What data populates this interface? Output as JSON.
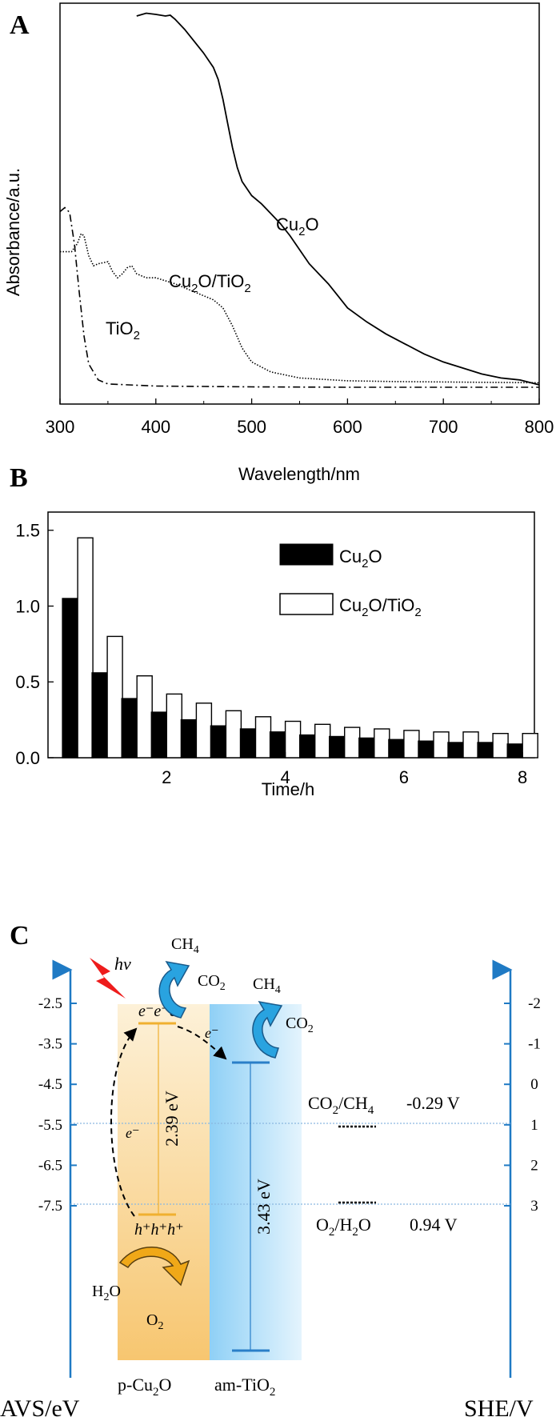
{
  "panels": {
    "a": "A",
    "b": "B",
    "c": "C"
  },
  "chart_data": [
    {
      "type": "line",
      "panel": "A",
      "xlabel": "Wavelength/nm",
      "ylabel": "Absorbance/a.u.",
      "xlim": [
        300,
        800
      ],
      "ylim": [
        0,
        1
      ],
      "xticks": [
        300,
        400,
        500,
        600,
        700,
        800
      ],
      "series": [
        {
          "name": "Cu2O",
          "label_main": "Cu",
          "label_sub": "2",
          "label_rest": "O",
          "style": "solid",
          "points": [
            [
              380,
              0.968
            ],
            [
              390,
              0.975
            ],
            [
              400,
              0.972
            ],
            [
              410,
              0.968
            ],
            [
              415,
              0.97
            ],
            [
              420,
              0.96
            ],
            [
              430,
              0.935
            ],
            [
              440,
              0.905
            ],
            [
              450,
              0.875
            ],
            [
              460,
              0.84
            ],
            [
              465,
              0.81
            ],
            [
              470,
              0.76
            ],
            [
              475,
              0.7
            ],
            [
              480,
              0.64
            ],
            [
              485,
              0.59
            ],
            [
              490,
              0.555
            ],
            [
              500,
              0.52
            ],
            [
              510,
              0.5
            ],
            [
              520,
              0.475
            ],
            [
              530,
              0.45
            ],
            [
              540,
              0.42
            ],
            [
              550,
              0.385
            ],
            [
              560,
              0.35
            ],
            [
              570,
              0.325
            ],
            [
              580,
              0.3
            ],
            [
              590,
              0.27
            ],
            [
              600,
              0.24
            ],
            [
              620,
              0.205
            ],
            [
              640,
              0.175
            ],
            [
              660,
              0.15
            ],
            [
              680,
              0.125
            ],
            [
              700,
              0.105
            ],
            [
              720,
              0.09
            ],
            [
              740,
              0.075
            ],
            [
              760,
              0.065
            ],
            [
              780,
              0.06
            ],
            [
              800,
              0.048
            ]
          ]
        },
        {
          "name": "Cu2O/TiO2",
          "label_main": "Cu",
          "label_sub": "2",
          "label_rest": "O/TiO",
          "label_sub2": "2",
          "style": "dotted",
          "points": [
            [
              300,
              0.38
            ],
            [
              312,
              0.38
            ],
            [
              318,
              0.4
            ],
            [
              322,
              0.425
            ],
            [
              325,
              0.42
            ],
            [
              330,
              0.37
            ],
            [
              335,
              0.345
            ],
            [
              340,
              0.35
            ],
            [
              350,
              0.355
            ],
            [
              355,
              0.33
            ],
            [
              360,
              0.315
            ],
            [
              365,
              0.325
            ],
            [
              370,
              0.34
            ],
            [
              375,
              0.345
            ],
            [
              380,
              0.325
            ],
            [
              390,
              0.315
            ],
            [
              400,
              0.315
            ],
            [
              420,
              0.3
            ],
            [
              440,
              0.28
            ],
            [
              460,
              0.26
            ],
            [
              470,
              0.24
            ],
            [
              480,
              0.195
            ],
            [
              490,
              0.14
            ],
            [
              500,
              0.105
            ],
            [
              520,
              0.08
            ],
            [
              550,
              0.065
            ],
            [
              600,
              0.058
            ],
            [
              650,
              0.056
            ],
            [
              700,
              0.055
            ],
            [
              750,
              0.054
            ],
            [
              800,
              0.053
            ]
          ]
        },
        {
          "name": "TiO2",
          "label_main": "TiO",
          "label_sub": "2",
          "label_rest": "",
          "style": "dashdot",
          "points": [
            [
              300,
              0.48
            ],
            [
              305,
              0.49
            ],
            [
              310,
              0.478
            ],
            [
              315,
              0.4
            ],
            [
              320,
              0.28
            ],
            [
              325,
              0.17
            ],
            [
              330,
              0.1
            ],
            [
              340,
              0.06
            ],
            [
              350,
              0.05
            ],
            [
              400,
              0.045
            ],
            [
              500,
              0.043
            ],
            [
              600,
              0.042
            ],
            [
              700,
              0.042
            ],
            [
              800,
              0.042
            ]
          ]
        }
      ]
    },
    {
      "type": "bar",
      "panel": "B",
      "xlabel": "Time/h",
      "ylabel": "",
      "xlim": [
        0,
        8.2
      ],
      "ylim": [
        0,
        1.62
      ],
      "xticks": [
        2,
        4,
        6,
        8
      ],
      "yticks": [
        "0.0",
        "0.5",
        "1.0",
        "1.5"
      ],
      "categories": [
        0.5,
        1.0,
        1.5,
        2.0,
        2.5,
        3.0,
        3.5,
        4.0,
        4.5,
        5.0,
        5.5,
        6.0,
        6.5,
        7.0,
        7.5,
        8.0
      ],
      "series": [
        {
          "name": "Cu2O",
          "legend_main": "Cu",
          "legend_sub": "2",
          "legend_rest": "O",
          "fill": "#000000",
          "values": [
            1.05,
            0.56,
            0.39,
            0.3,
            0.25,
            0.21,
            0.19,
            0.17,
            0.15,
            0.14,
            0.13,
            0.12,
            0.11,
            0.1,
            0.1,
            0.09
          ]
        },
        {
          "name": "Cu2O/TiO2",
          "legend_main": "Cu",
          "legend_sub": "2",
          "legend_rest": "O/TiO",
          "legend_sub2": "2",
          "fill": "#ffffff",
          "values": [
            1.45,
            0.8,
            0.54,
            0.42,
            0.36,
            0.31,
            0.27,
            0.24,
            0.22,
            0.2,
            0.19,
            0.18,
            0.17,
            0.17,
            0.16,
            0.16
          ]
        }
      ]
    }
  ],
  "diagram": {
    "left_axis_label": "AVS/eV",
    "right_axis_label": "SHE/V",
    "left_ticks": [
      "-2.5",
      "-3.5",
      "-4.5",
      "-5.5",
      "-6.5",
      "-7.5"
    ],
    "right_ticks": [
      "-2",
      "-1",
      "0",
      "1",
      "2",
      "3"
    ],
    "hv": "hν",
    "ch4": "CH",
    "ch4_sub": "4",
    "co2": "CO",
    "co2_sub": "2",
    "h2o": "H",
    "h2o_sub": "2",
    "h2o_rest": "O",
    "o2": "O",
    "o2_sub": "2",
    "electrons": "e⁻e⁻e⁻",
    "holes": "h⁺h⁺h⁺",
    "e_minus": "e⁻",
    "gap_cu2o": "2.39 eV",
    "gap_tio2": "3.43 eV",
    "p_cu2o": "p-Cu",
    "p_cu2o_sub": "2",
    "p_cu2o_rest": "O",
    "am_tio2": "am-TiO",
    "am_tio2_sub": "2",
    "redox1_a": "CO",
    "redox1_sub_a": "2",
    "redox1_b": "/CH",
    "redox1_sub_b": "4",
    "redox1_value": "-0.29 V",
    "redox2_a": "O",
    "redox2_sub_a": "2",
    "redox2_b": "/H",
    "redox2_sub_b": "2",
    "redox2_c": "O",
    "redox2_value": "0.94 V",
    "colors": {
      "axis_blue": "#1f7ac4",
      "cu2o_band": "#f0b030",
      "tio2_band": "#2a7fc8",
      "arrow_blue": "#29a3e0",
      "arrow_orange": "#f0a818",
      "red": "#ee1c1c"
    }
  }
}
